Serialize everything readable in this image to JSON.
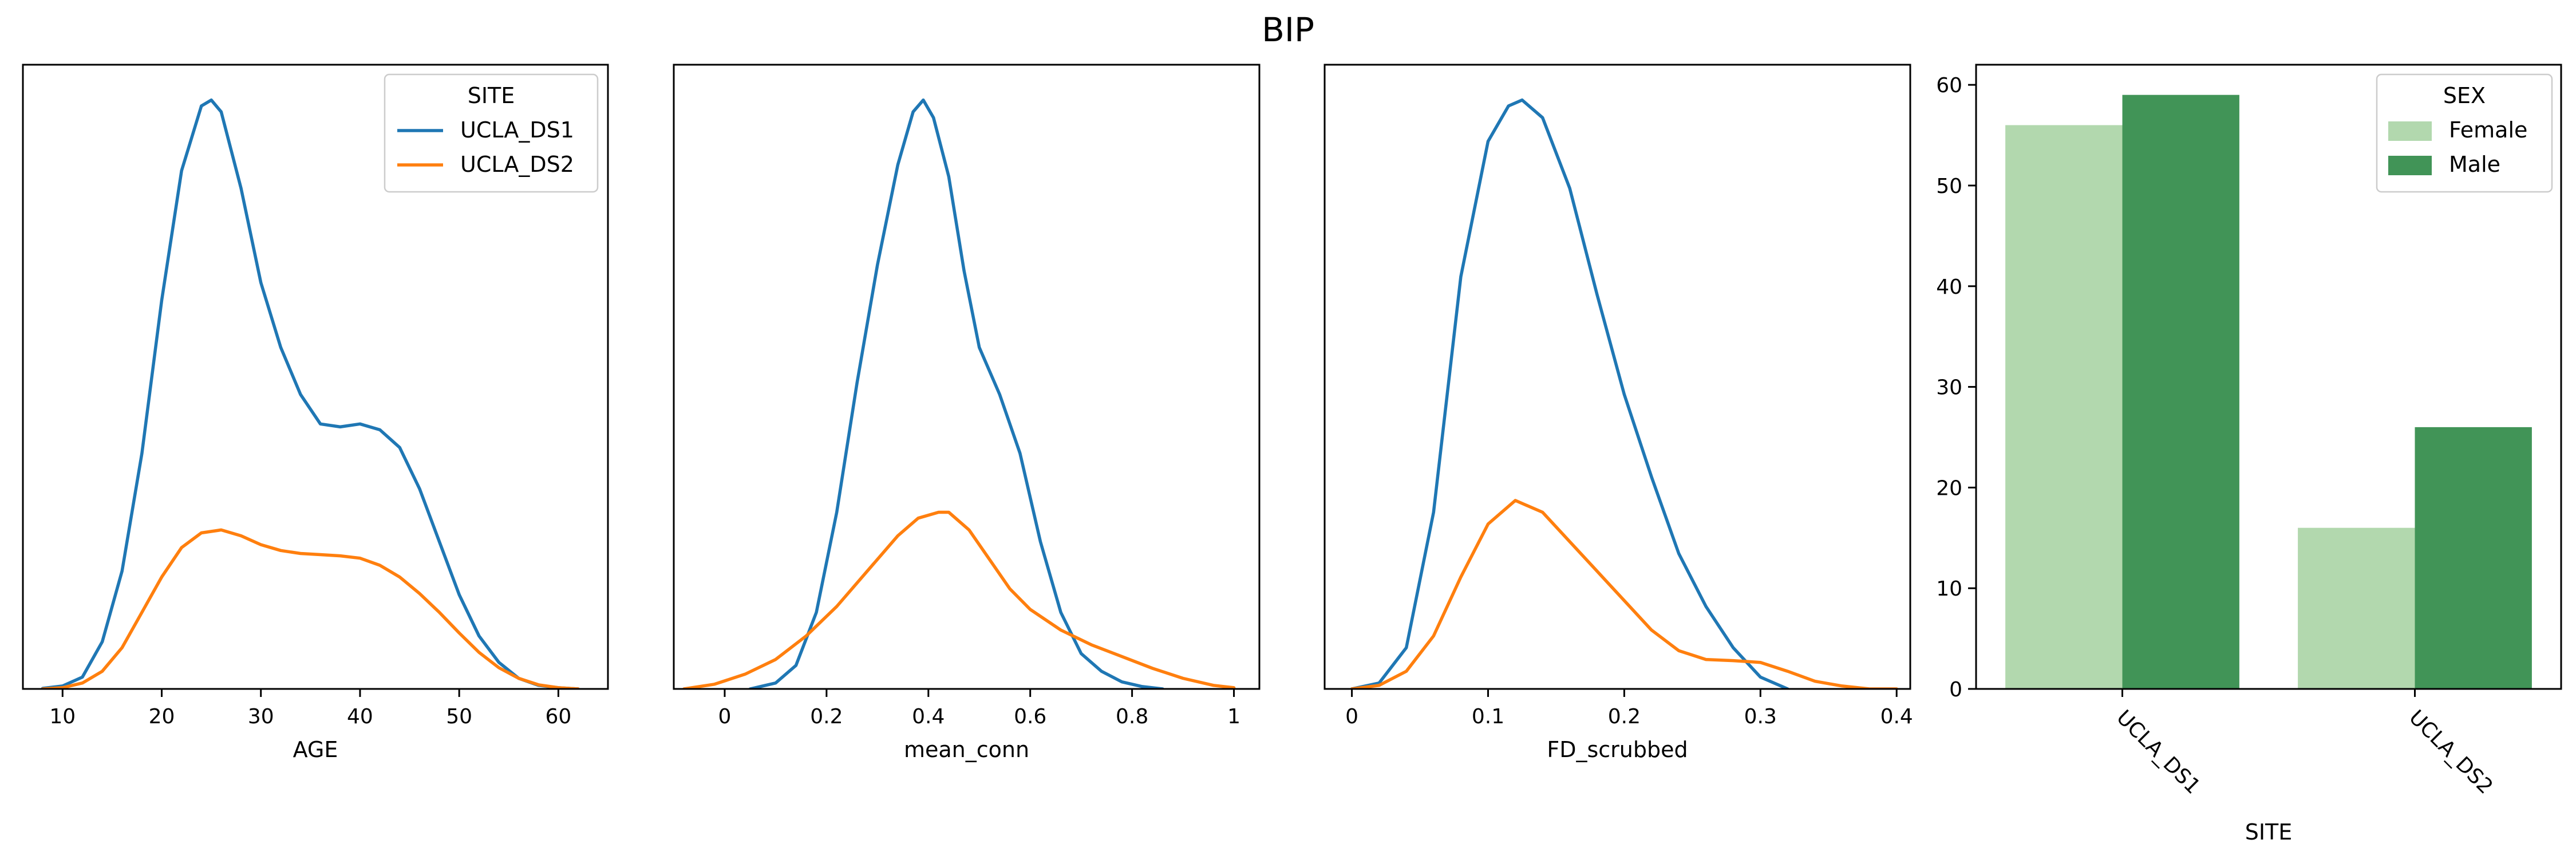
{
  "chart_data": [
    {
      "type": "line",
      "title": "BIP",
      "xlabel": "AGE",
      "ylabel": "",
      "xlim": [
        6,
        65
      ],
      "ylim": [
        0,
        1.06
      ],
      "xticks": [
        10,
        20,
        30,
        40,
        50,
        60
      ],
      "yticks_visible": false,
      "legend": {
        "title": "SITE",
        "placement": "top-right"
      },
      "series": [
        {
          "name": "UCLA_DS1",
          "color": "#1f77b4",
          "x": [
            8,
            10,
            12,
            14,
            16,
            18,
            20,
            22,
            24,
            25,
            26,
            28,
            30,
            32,
            34,
            36,
            38,
            40,
            42,
            44,
            46,
            48,
            50,
            52,
            54,
            56,
            58,
            60,
            62
          ],
          "y": [
            0.001,
            0.005,
            0.02,
            0.08,
            0.2,
            0.4,
            0.66,
            0.88,
            0.99,
            1.0,
            0.98,
            0.85,
            0.69,
            0.58,
            0.5,
            0.45,
            0.445,
            0.45,
            0.44,
            0.41,
            0.34,
            0.25,
            0.16,
            0.09,
            0.045,
            0.018,
            0.006,
            0.002,
            0.0
          ]
        },
        {
          "name": "UCLA_DS2",
          "color": "#ff7f0e",
          "x": [
            8,
            10,
            12,
            14,
            16,
            18,
            20,
            22,
            24,
            26,
            28,
            30,
            32,
            34,
            36,
            38,
            40,
            42,
            44,
            46,
            48,
            50,
            52,
            54,
            56,
            58,
            60,
            62
          ],
          "y": [
            0.0,
            0.002,
            0.01,
            0.03,
            0.07,
            0.13,
            0.19,
            0.24,
            0.265,
            0.27,
            0.26,
            0.245,
            0.235,
            0.23,
            0.228,
            0.226,
            0.222,
            0.21,
            0.19,
            0.162,
            0.13,
            0.095,
            0.062,
            0.036,
            0.018,
            0.007,
            0.002,
            0.0
          ]
        }
      ]
    },
    {
      "type": "line",
      "xlabel": "mean_conn",
      "ylabel": "",
      "xlim": [
        -0.1,
        1.05
      ],
      "ylim": [
        0,
        1.06
      ],
      "xticks": [
        0.0,
        0.2,
        0.4,
        0.6,
        0.8,
        1.0
      ],
      "yticks_visible": false,
      "series": [
        {
          "name": "UCLA_DS1",
          "color": "#1f77b4",
          "x": [
            0.05,
            0.1,
            0.14,
            0.18,
            0.22,
            0.26,
            0.3,
            0.34,
            0.37,
            0.39,
            0.41,
            0.44,
            0.47,
            0.5,
            0.54,
            0.58,
            0.62,
            0.66,
            0.7,
            0.74,
            0.78,
            0.82,
            0.86
          ],
          "y": [
            0.0,
            0.01,
            0.04,
            0.13,
            0.3,
            0.52,
            0.72,
            0.89,
            0.98,
            1.0,
            0.97,
            0.87,
            0.71,
            0.58,
            0.5,
            0.4,
            0.25,
            0.13,
            0.06,
            0.03,
            0.012,
            0.004,
            0.0
          ]
        },
        {
          "name": "UCLA_DS2",
          "color": "#ff7f0e",
          "x": [
            -0.08,
            -0.02,
            0.04,
            0.1,
            0.16,
            0.22,
            0.28,
            0.34,
            0.38,
            0.42,
            0.44,
            0.48,
            0.52,
            0.56,
            0.6,
            0.66,
            0.72,
            0.78,
            0.84,
            0.9,
            0.96,
            1.0
          ],
          "y": [
            0.0,
            0.008,
            0.025,
            0.05,
            0.09,
            0.14,
            0.2,
            0.26,
            0.29,
            0.3,
            0.3,
            0.27,
            0.22,
            0.17,
            0.135,
            0.1,
            0.075,
            0.055,
            0.035,
            0.018,
            0.006,
            0.002
          ]
        }
      ]
    },
    {
      "type": "line",
      "xlabel": "FD_scrubbed",
      "ylabel": "",
      "xlim": [
        -0.02,
        0.41
      ],
      "ylim": [
        0,
        1.06
      ],
      "xticks": [
        0.0,
        0.1,
        0.2,
        0.3,
        0.4
      ],
      "yticks_visible": false,
      "series": [
        {
          "name": "UCLA_DS1",
          "color": "#1f77b4",
          "x": [
            0.0,
            0.02,
            0.04,
            0.06,
            0.08,
            0.1,
            0.115,
            0.125,
            0.14,
            0.16,
            0.18,
            0.2,
            0.22,
            0.24,
            0.26,
            0.28,
            0.3,
            0.32
          ],
          "y": [
            0.0,
            0.01,
            0.07,
            0.3,
            0.7,
            0.93,
            0.99,
            1.0,
            0.97,
            0.85,
            0.67,
            0.5,
            0.36,
            0.23,
            0.14,
            0.07,
            0.02,
            0.0
          ]
        },
        {
          "name": "UCLA_DS2",
          "color": "#ff7f0e",
          "x": [
            0.0,
            0.02,
            0.04,
            0.06,
            0.08,
            0.1,
            0.12,
            0.14,
            0.16,
            0.18,
            0.2,
            0.22,
            0.24,
            0.26,
            0.28,
            0.3,
            0.32,
            0.34,
            0.36,
            0.38,
            0.4
          ],
          "y": [
            0.0,
            0.006,
            0.03,
            0.09,
            0.19,
            0.28,
            0.32,
            0.3,
            0.25,
            0.2,
            0.15,
            0.1,
            0.065,
            0.05,
            0.048,
            0.045,
            0.03,
            0.013,
            0.005,
            0.0,
            0.0
          ]
        }
      ]
    },
    {
      "type": "bar",
      "xlabel": "SITE",
      "ylabel": "",
      "categories": [
        "UCLA_DS1",
        "UCLA_DS2"
      ],
      "ylim": [
        0,
        62
      ],
      "yticks": [
        0,
        10,
        20,
        30,
        40,
        50,
        60
      ],
      "legend": {
        "title": "SEX",
        "placement": "top-right"
      },
      "series": [
        {
          "name": "Female",
          "color": "#b2d8ae",
          "values": [
            56,
            16
          ]
        },
        {
          "name": "Male",
          "color": "#419457",
          "values": [
            59,
            26
          ]
        }
      ]
    }
  ]
}
